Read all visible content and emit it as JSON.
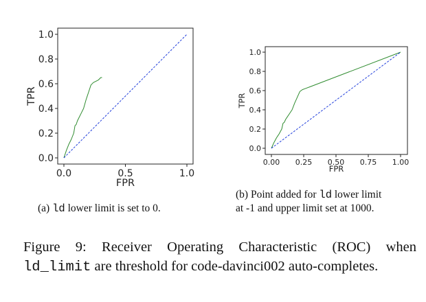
{
  "chart_data": [
    {
      "type": "line",
      "xlabel": "FPR",
      "ylabel": "TPR",
      "xlim": [
        0.0,
        1.0
      ],
      "ylim": [
        0.0,
        1.0
      ],
      "xticks": [
        "0.0",
        "0.5",
        "1.0"
      ],
      "yticks": [
        "0.0",
        "0.2",
        "0.4",
        "0.6",
        "0.8",
        "1.0"
      ],
      "grid": false,
      "series": [
        {
          "color": "#2e8b2e",
          "style": "solid",
          "x": [
            0.0,
            0.02,
            0.04,
            0.05,
            0.06,
            0.08,
            0.09,
            0.1,
            0.11,
            0.12,
            0.14,
            0.16,
            0.18,
            0.2,
            0.22,
            0.24,
            0.26,
            0.28,
            0.3,
            0.31
          ],
          "y": [
            0.0,
            0.06,
            0.11,
            0.13,
            0.15,
            0.2,
            0.26,
            0.27,
            0.3,
            0.32,
            0.36,
            0.4,
            0.47,
            0.53,
            0.59,
            0.61,
            0.62,
            0.63,
            0.65,
            0.65
          ]
        },
        {
          "color": "#1f3ddb",
          "style": "dashed",
          "x": [
            0.0,
            1.0
          ],
          "y": [
            0.0,
            1.0
          ]
        }
      ]
    },
    {
      "type": "line",
      "xlabel": "FPR",
      "ylabel": "TPR",
      "xlim": [
        0.0,
        1.0
      ],
      "ylim": [
        0.0,
        1.0
      ],
      "xticks": [
        "0.00",
        "0.25",
        "0.50",
        "0.75",
        "1.00"
      ],
      "yticks": [
        "0.0",
        "0.2",
        "0.4",
        "0.6",
        "0.8",
        "1.0"
      ],
      "grid": false,
      "series": [
        {
          "color": "#2e8b2e",
          "style": "solid",
          "x": [
            0.0,
            0.02,
            0.04,
            0.05,
            0.06,
            0.08,
            0.09,
            0.1,
            0.11,
            0.12,
            0.14,
            0.16,
            0.18,
            0.2,
            0.22,
            0.24,
            0.26,
            0.3,
            1.0
          ],
          "y": [
            0.0,
            0.06,
            0.11,
            0.13,
            0.15,
            0.2,
            0.26,
            0.27,
            0.3,
            0.32,
            0.36,
            0.4,
            0.47,
            0.53,
            0.59,
            0.61,
            0.62,
            0.64,
            1.0
          ]
        },
        {
          "color": "#1f3ddb",
          "style": "dashed",
          "x": [
            0.0,
            1.0
          ],
          "y": [
            0.0,
            1.0
          ]
        }
      ]
    }
  ],
  "captions": {
    "a": {
      "prefix": "(a) ",
      "code": "ld",
      "rest": " lower limit is set to 0."
    },
    "b": {
      "line1_prefix": "(b) Point added for ",
      "line1_code": "ld",
      "line1_rest": " lower limit",
      "line2": "at -1 and upper limit set at 1000."
    },
    "figure": {
      "line1": "Figure 9: Receiver Operating Characteristic (ROC) when",
      "line2_code": "ld_limit",
      "line2_rest": " are threshold for code-davinci002 auto-completes."
    }
  }
}
